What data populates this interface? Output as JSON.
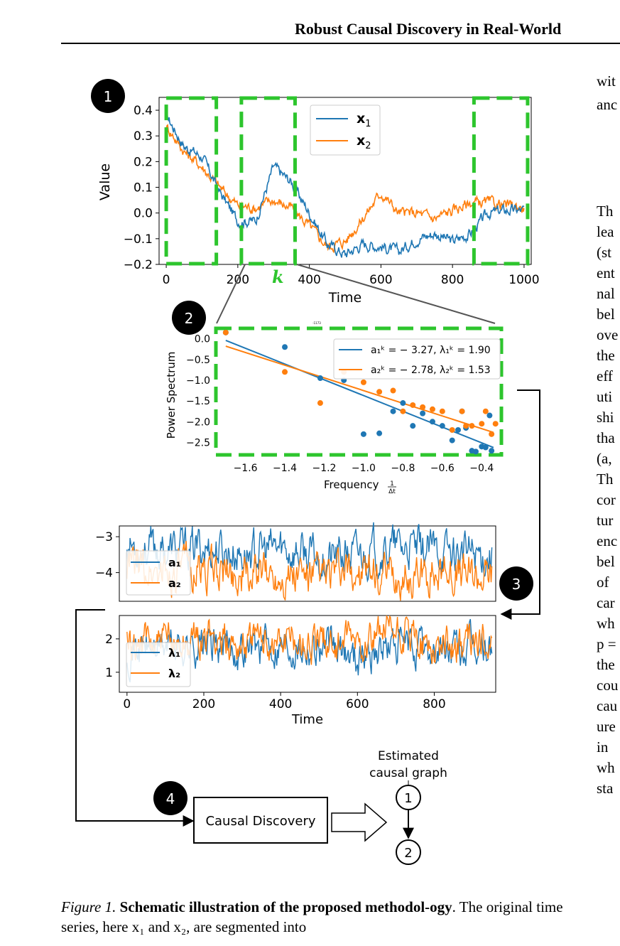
{
  "header": {
    "title": "Robust Causal Discovery in Real-World"
  },
  "steps": [
    "1",
    "2",
    "3",
    "4"
  ],
  "plot1": {
    "ylabel": "Value",
    "xlabel": "Time",
    "yticks": [
      "0.4",
      "0.3",
      "0.2",
      "0.1",
      "0.0",
      "−0.1",
      "−0.2"
    ],
    "xticks": [
      "0",
      "200",
      "400",
      "600",
      "800",
      "1000"
    ],
    "k_label": "k",
    "legend": [
      "x1",
      "x2"
    ],
    "colors": {
      "x1": "#1f77b4",
      "x2": "#ff7f0e",
      "window": "#2dc52d"
    }
  },
  "plot2": {
    "ylabel": "Power Spectrum",
    "xlabel": "Frequency",
    "xlabel_frac_num": "1",
    "xlabel_frac_den": "Δt",
    "tiny_label": "-1173",
    "yticks": [
      "0.0",
      "−0.5",
      "−1.0",
      "−1.5",
      "−2.0",
      "−2.5"
    ],
    "xticks": [
      "−1.6",
      "−1.4",
      "−1.2",
      "−1.0",
      "−0.8",
      "−0.6",
      "−0.4"
    ],
    "legend": [
      "a₁ᵏ = − 3.27, λ₁ᵏ = 1.90",
      "a₂ᵏ = − 2.78, λ₂ᵏ = 1.53"
    ]
  },
  "plot3a": {
    "yticks": [
      "−3",
      "−4"
    ],
    "legend": [
      "a₁",
      "a₂"
    ]
  },
  "plot3b": {
    "yticks": [
      "2",
      "1"
    ],
    "xticks": [
      "0",
      "200",
      "400",
      "600",
      "800"
    ],
    "xlabel": "Time",
    "legend": [
      "λ₁",
      "λ₂"
    ]
  },
  "causal": {
    "box_label": "Causal Discovery",
    "graph_title_line1": "Estimated",
    "graph_title_line2": "causal graph",
    "node1": "1",
    "node2": "2"
  },
  "right_column": [
    "wit",
    "anc",
    "Th",
    "lea",
    "(st",
    "ent",
    "nal",
    "bel",
    "ove",
    "the",
    "eff",
    "uti",
    "shi",
    "tha",
    "(a,",
    "Th",
    "cor",
    "tur",
    "enc",
    "bel",
    "of",
    "car",
    "wh",
    "p =",
    "the",
    "cou",
    "cau",
    "ure",
    "in",
    "wh",
    "sta"
  ],
  "caption": {
    "label": "Figure 1.",
    "bold": "Schematic illustration of the proposed methodol-ogy",
    "rest": ". The original time series, here x₁ and x₂, are segmented into"
  },
  "chart_data": [
    {
      "type": "line",
      "title": "",
      "xlabel": "Time",
      "ylabel": "Value",
      "xlim": [
        -20,
        1020
      ],
      "ylim": [
        -0.2,
        0.45
      ],
      "series": [
        {
          "name": "x1",
          "x": [
            0,
            50,
            100,
            150,
            200,
            250,
            300,
            350,
            400,
            450,
            500,
            550,
            600,
            650,
            700,
            750,
            800,
            850,
            900,
            950,
            1000
          ],
          "values": [
            0.38,
            0.26,
            0.22,
            0.08,
            -0.03,
            -0.03,
            0.18,
            0.12,
            0.0,
            -0.12,
            -0.16,
            -0.12,
            -0.13,
            -0.15,
            -0.1,
            -0.08,
            -0.11,
            -0.08,
            0.0,
            0.01,
            0.01
          ]
        },
        {
          "name": "x2",
          "x": [
            0,
            50,
            100,
            150,
            200,
            250,
            300,
            350,
            400,
            450,
            500,
            550,
            600,
            650,
            700,
            750,
            800,
            850,
            900,
            950,
            1000
          ],
          "values": [
            0.34,
            0.24,
            0.18,
            0.1,
            0.03,
            0.02,
            0.05,
            0.02,
            -0.05,
            -0.13,
            -0.11,
            -0.02,
            0.08,
            0.0,
            0.0,
            -0.02,
            0.01,
            0.04,
            0.04,
            0.03,
            0.02
          ]
        }
      ],
      "windows": [
        [
          0,
          140
        ],
        [
          210,
          360
        ],
        [
          860,
          1010
        ]
      ]
    },
    {
      "type": "scatter",
      "xlabel": "Frequency",
      "ylabel": "Power Spectrum",
      "xlim": [
        -1.75,
        -0.3
      ],
      "ylim": [
        -2.8,
        0.25
      ],
      "series": [
        {
          "name": "a₁ᵏ = − 3.27, λ₁ᵏ = 1.90",
          "x": [
            -1.7,
            -1.4,
            -1.22,
            -1.1,
            -1.0,
            -0.92,
            -0.85,
            -0.8,
            -0.75,
            -0.7,
            -0.65,
            -0.6,
            -0.55,
            -0.52,
            -0.5,
            -0.48,
            -0.45,
            -0.43,
            -0.4,
            -0.38,
            -0.36,
            -0.35
          ],
          "values": [
            0.15,
            -0.2,
            -0.95,
            -1.0,
            -2.3,
            -2.28,
            -1.75,
            -1.55,
            -2.1,
            -1.8,
            -2.0,
            -2.1,
            -2.45,
            -2.2,
            -1.75,
            -2.15,
            -2.7,
            -2.72,
            -2.6,
            -2.62,
            -1.85,
            -2.7
          ],
          "fit": {
            "slope": -1.9,
            "intercept": -3.27
          }
        },
        {
          "name": "a₂ᵏ = − 2.78, λ₂ᵏ = 1.53",
          "x": [
            -1.7,
            -1.4,
            -1.22,
            -1.1,
            -1.0,
            -0.92,
            -0.85,
            -0.8,
            -0.75,
            -0.7,
            -0.65,
            -0.6,
            -0.55,
            -0.5,
            -0.48,
            -0.45,
            -0.4,
            -0.38,
            -0.35,
            -0.33
          ],
          "values": [
            0.15,
            -0.8,
            -1.55,
            -0.8,
            -1.05,
            -1.28,
            -1.25,
            -1.75,
            -1.6,
            -1.65,
            -1.7,
            -1.75,
            -2.2,
            -1.75,
            -2.1,
            -2.1,
            -2.05,
            -1.75,
            -2.3,
            -2.05
          ],
          "fit": {
            "slope": -1.53,
            "intercept": -2.78
          }
        }
      ]
    },
    {
      "type": "line",
      "xlim": [
        -20,
        960
      ],
      "ylim": [
        -4.8,
        -2.7
      ],
      "series": [
        {
          "name": "a₁",
          "x": [
            0,
            100,
            200,
            300,
            400,
            500,
            600,
            700,
            800,
            950
          ],
          "values": [
            -3.2,
            -3.4,
            -3.3,
            -3.5,
            -3.3,
            -3.6,
            -3.5,
            -3.3,
            -3.4,
            -3.5
          ]
        },
        {
          "name": "a₂",
          "x": [
            0,
            100,
            200,
            300,
            400,
            500,
            600,
            700,
            800,
            950
          ],
          "values": [
            -3.8,
            -4.0,
            -3.9,
            -4.1,
            -4.0,
            -4.1,
            -4.0,
            -4.2,
            -4.0,
            -4.0
          ]
        }
      ]
    },
    {
      "type": "line",
      "xlabel": "Time",
      "xlim": [
        -20,
        960
      ],
      "ylim": [
        0.4,
        2.7
      ],
      "series": [
        {
          "name": "λ₁",
          "x": [
            0,
            100,
            200,
            300,
            400,
            500,
            600,
            700,
            800,
            950
          ],
          "values": [
            1.7,
            1.8,
            1.8,
            1.7,
            1.9,
            1.8,
            1.5,
            1.8,
            1.6,
            1.7
          ]
        },
        {
          "name": "λ₂",
          "x": [
            0,
            100,
            200,
            300,
            400,
            500,
            600,
            700,
            800,
            950
          ],
          "values": [
            1.8,
            1.9,
            2.0,
            1.9,
            2.0,
            1.9,
            1.9,
            2.1,
            1.8,
            1.9
          ]
        }
      ]
    }
  ]
}
